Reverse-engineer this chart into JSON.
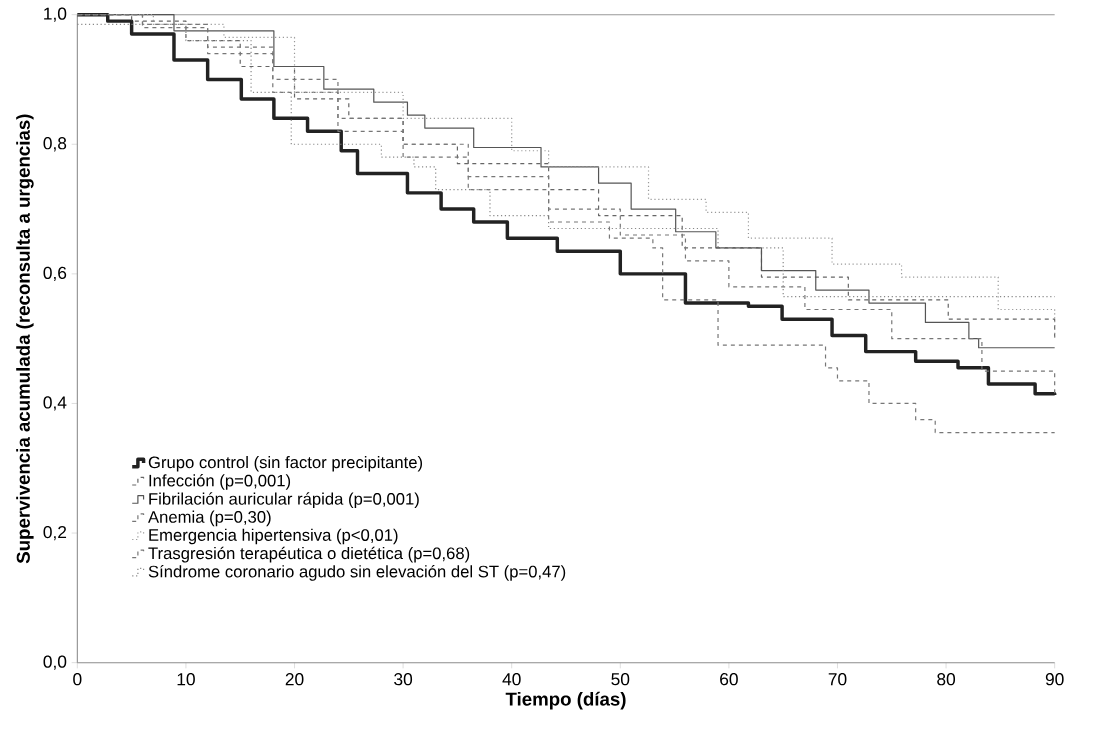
{
  "chart_data": {
    "type": "step",
    "xlabel": "Tiempo (días)",
    "ylabel": "Supervivencia acumulada (reconsulta a urgencias)",
    "xlim": [
      0,
      90
    ],
    "xticks": [
      0,
      10,
      20,
      30,
      40,
      50,
      60,
      70,
      80,
      90
    ],
    "ylim": [
      0,
      1.0
    ],
    "yticks": [
      {
        "value": 0,
        "label": "0,0"
      },
      {
        "value": 0.2,
        "label": "0,2"
      },
      {
        "value": 0.4,
        "label": "0,4"
      },
      {
        "value": 0.6,
        "label": "0,6"
      },
      {
        "value": 0.8,
        "label": "0,8"
      },
      {
        "value": 1.0,
        "label": "1,0"
      }
    ],
    "legend": "bottom left",
    "grid": false,
    "ref_lines": [
      {
        "axis": "y",
        "value": 1.0,
        "color": "#999999"
      }
    ],
    "series": [
      {
        "name": "Grupo control (sin factor precipitante)",
        "color": "#222222",
        "line_style": "solid",
        "x": [
          0,
          2.8,
          5,
          8.9,
          12,
          15.1,
          18.1,
          21.2,
          24.3,
          25.8,
          30.4,
          33.5,
          36.5,
          39.6,
          44.2,
          50,
          56,
          61.8,
          64.9,
          69.5,
          72.6,
          77.2,
          81.1,
          83.9,
          88.2,
          90
        ],
        "values": [
          1.0,
          0.99,
          0.97,
          0.93,
          0.9,
          0.87,
          0.84,
          0.82,
          0.79,
          0.755,
          0.725,
          0.7,
          0.68,
          0.655,
          0.635,
          0.6,
          0.555,
          0.55,
          0.53,
          0.505,
          0.48,
          0.465,
          0.455,
          0.43,
          0.415,
          0.413
        ]
      },
      {
        "name": "Infección (p=0,001)",
        "color": "#666666",
        "line_style": "dashed",
        "x": [
          0,
          5,
          10,
          15,
          20,
          25,
          30,
          35,
          43.4,
          48,
          55.7,
          63,
          71,
          80.2,
          90
        ],
        "values": [
          1.0,
          0.99,
          0.96,
          0.92,
          0.87,
          0.84,
          0.8,
          0.77,
          0.73,
          0.69,
          0.64,
          0.595,
          0.56,
          0.53,
          0.5
        ]
      },
      {
        "name": "Fibrilación auricular rápida (p=0,001)",
        "color": "#555555",
        "line_style": "solid",
        "x": [
          0,
          8.9,
          18.1,
          22.7,
          27.3,
          30.4,
          32,
          36.5,
          42.7,
          48,
          51,
          55.1,
          58.8,
          63,
          68,
          72.9,
          78.1,
          82.1,
          83,
          90
        ],
        "values": [
          1.0,
          0.975,
          0.92,
          0.885,
          0.865,
          0.845,
          0.825,
          0.795,
          0.765,
          0.74,
          0.7,
          0.665,
          0.64,
          0.605,
          0.575,
          0.555,
          0.525,
          0.5,
          0.486,
          0.486
        ]
      },
      {
        "name": "Anemia (p=0,30)",
        "color": "#777777",
        "line_style": "dashed",
        "x": [
          0,
          6,
          12,
          18,
          24,
          30,
          36,
          43.4,
          49,
          53,
          53.9,
          59,
          68.9,
          70,
          72.9,
          77.2,
          79,
          90
        ],
        "values": [
          1.0,
          0.98,
          0.94,
          0.88,
          0.82,
          0.78,
          0.73,
          0.68,
          0.655,
          0.64,
          0.56,
          0.49,
          0.455,
          0.435,
          0.4,
          0.375,
          0.355,
          0.355
        ]
      },
      {
        "name": "Emergencia hipertensiva (p<0,01)",
        "color": "#999999",
        "line_style": "dotted",
        "x": [
          0,
          7,
          13.5,
          20,
          30,
          40,
          43.4,
          52.6,
          57.9,
          61.8,
          69.5,
          75.9,
          84.8,
          90
        ],
        "values": [
          1.0,
          0.985,
          0.965,
          0.88,
          0.84,
          0.79,
          0.765,
          0.715,
          0.695,
          0.655,
          0.615,
          0.595,
          0.545,
          0.5
        ]
      },
      {
        "name": "Trasgresión terapéutica o dietética (p=0,68)",
        "color": "#777777",
        "line_style": "dashed",
        "x": [
          0,
          6,
          12,
          18,
          24,
          30,
          36,
          43.4,
          50,
          56,
          60,
          67,
          75,
          83.3,
          90
        ],
        "values": [
          1.0,
          0.985,
          0.95,
          0.9,
          0.84,
          0.8,
          0.75,
          0.7,
          0.66,
          0.62,
          0.58,
          0.545,
          0.5,
          0.45,
          0.41
        ]
      },
      {
        "name": "Síndrome coronario agudo sin elevación del ST (p=0,47)",
        "color": "#888888",
        "line_style": "dotted",
        "x": [
          0,
          10,
          16,
          19.7,
          28,
          31,
          33,
          38,
          43.4,
          59,
          65,
          90
        ],
        "values": [
          0.985,
          0.96,
          0.88,
          0.8,
          0.78,
          0.765,
          0.73,
          0.69,
          0.67,
          0.64,
          0.565,
          0.565
        ]
      }
    ]
  }
}
